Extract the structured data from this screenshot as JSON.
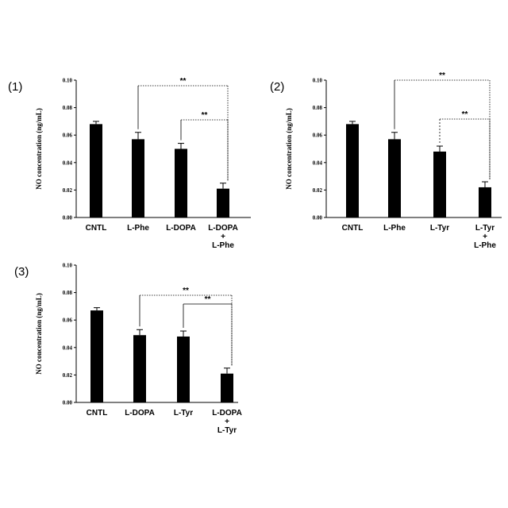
{
  "chart_data": [
    {
      "type": "bar",
      "panel_label": "(1)",
      "ylabel": "NO concentration  (ng/mL)",
      "ylim": [
        0,
        0.1
      ],
      "yticks": [
        "0.00",
        "0.02",
        "0.04",
        "0.06",
        "0.08",
        "0.10"
      ],
      "categories": [
        [
          "CNTL"
        ],
        [
          "L-Phe"
        ],
        [
          "L-DOPA"
        ],
        [
          "L-DOPA",
          "+",
          "L-Phe"
        ]
      ],
      "values": [
        0.068,
        0.057,
        0.05,
        0.021
      ],
      "errors": [
        0.002,
        0.005,
        0.004,
        0.004
      ],
      "bar_color": "#000000",
      "significance": [
        {
          "from": 1,
          "to": 3,
          "label": "**"
        },
        {
          "from": 2,
          "to": 3,
          "label": "**"
        }
      ]
    },
    {
      "type": "bar",
      "panel_label": "(2)",
      "ylabel": "NO concentration  (ng/mL)",
      "ylim": [
        0,
        0.1
      ],
      "yticks": [
        "0.00",
        "0.02",
        "0.04",
        "0.06",
        "0.08",
        "0.10"
      ],
      "categories": [
        [
          "CNTL"
        ],
        [
          "L-Phe"
        ],
        [
          "L-Tyr"
        ],
        [
          "L-Tyr",
          "+",
          "L-Phe"
        ]
      ],
      "values": [
        0.068,
        0.057,
        0.048,
        0.022
      ],
      "errors": [
        0.002,
        0.005,
        0.004,
        0.004
      ],
      "bar_color": "#000000",
      "significance": [
        {
          "from": 1,
          "to": 3,
          "label": "**"
        },
        {
          "from": 2,
          "to": 3,
          "label": "**"
        }
      ]
    },
    {
      "type": "bar",
      "panel_label": "(3)",
      "ylabel": "NO concentration  (ng/mL)",
      "ylim": [
        0,
        0.1
      ],
      "yticks": [
        "0.00",
        "0.02",
        "0.04",
        "0.06",
        "0.08",
        "0.10"
      ],
      "categories": [
        [
          "CNTL"
        ],
        [
          "L-DOPA"
        ],
        [
          "L-Tyr"
        ],
        [
          "L-DOPA",
          "+",
          "L-Tyr"
        ]
      ],
      "values": [
        0.067,
        0.049,
        0.048,
        0.021
      ],
      "errors": [
        0.002,
        0.004,
        0.004,
        0.004
      ],
      "bar_color": "#000000",
      "significance": [
        {
          "from": 1,
          "to": 3,
          "label": "**"
        },
        {
          "from": 2,
          "to": 3,
          "label": "**"
        }
      ]
    }
  ]
}
